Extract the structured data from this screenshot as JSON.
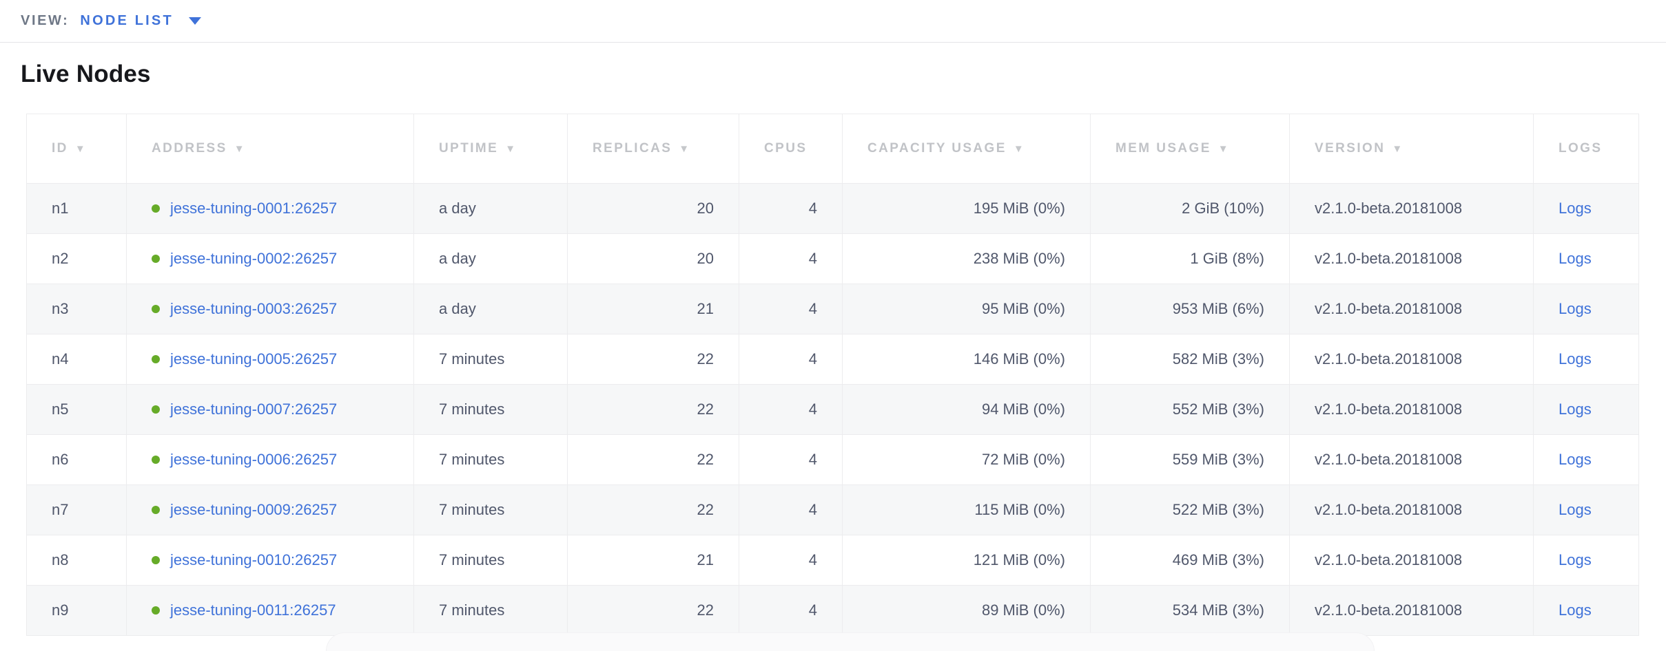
{
  "view_bar": {
    "label": "VIEW:",
    "selected": "NODE LIST"
  },
  "page": {
    "title": "Live Nodes"
  },
  "icons": {
    "sort_desc": "▼"
  },
  "colors": {
    "link_blue": "#3f72d9",
    "status_green": "#66ab28",
    "header_gray": "#c1c3c7",
    "text_slate": "#50576b",
    "stripe_gray": "#f6f7f8"
  },
  "table": {
    "columns": [
      {
        "key": "id",
        "label": "ID",
        "sortable": true,
        "align": "left"
      },
      {
        "key": "address",
        "label": "ADDRESS",
        "sortable": true,
        "align": "left"
      },
      {
        "key": "uptime",
        "label": "UPTIME",
        "sortable": true,
        "align": "left"
      },
      {
        "key": "replicas",
        "label": "REPLICAS",
        "sortable": true,
        "align": "right"
      },
      {
        "key": "cpus",
        "label": "CPUS",
        "sortable": false,
        "align": "right"
      },
      {
        "key": "capacity",
        "label": "CAPACITY USAGE",
        "sortable": true,
        "align": "right"
      },
      {
        "key": "mem",
        "label": "MEM USAGE",
        "sortable": true,
        "align": "right"
      },
      {
        "key": "version",
        "label": "VERSION",
        "sortable": true,
        "align": "left"
      },
      {
        "key": "logs",
        "label": "LOGS",
        "sortable": false,
        "align": "left"
      }
    ],
    "rows": [
      {
        "id": "n1",
        "address": "jesse-tuning-0001:26257",
        "uptime": "a day",
        "replicas": "20",
        "cpus": "4",
        "capacity": "195 MiB (0%)",
        "mem": "2 GiB (10%)",
        "version": "v2.1.0-beta.20181008",
        "logs": "Logs"
      },
      {
        "id": "n2",
        "address": "jesse-tuning-0002:26257",
        "uptime": "a day",
        "replicas": "20",
        "cpus": "4",
        "capacity": "238 MiB (0%)",
        "mem": "1 GiB (8%)",
        "version": "v2.1.0-beta.20181008",
        "logs": "Logs"
      },
      {
        "id": "n3",
        "address": "jesse-tuning-0003:26257",
        "uptime": "a day",
        "replicas": "21",
        "cpus": "4",
        "capacity": "95 MiB (0%)",
        "mem": "953 MiB (6%)",
        "version": "v2.1.0-beta.20181008",
        "logs": "Logs"
      },
      {
        "id": "n4",
        "address": "jesse-tuning-0005:26257",
        "uptime": "7 minutes",
        "replicas": "22",
        "cpus": "4",
        "capacity": "146 MiB (0%)",
        "mem": "582 MiB (3%)",
        "version": "v2.1.0-beta.20181008",
        "logs": "Logs"
      },
      {
        "id": "n5",
        "address": "jesse-tuning-0007:26257",
        "uptime": "7 minutes",
        "replicas": "22",
        "cpus": "4",
        "capacity": "94 MiB (0%)",
        "mem": "552 MiB (3%)",
        "version": "v2.1.0-beta.20181008",
        "logs": "Logs"
      },
      {
        "id": "n6",
        "address": "jesse-tuning-0006:26257",
        "uptime": "7 minutes",
        "replicas": "22",
        "cpus": "4",
        "capacity": "72 MiB (0%)",
        "mem": "559 MiB (3%)",
        "version": "v2.1.0-beta.20181008",
        "logs": "Logs"
      },
      {
        "id": "n7",
        "address": "jesse-tuning-0009:26257",
        "uptime": "7 minutes",
        "replicas": "22",
        "cpus": "4",
        "capacity": "115 MiB (0%)",
        "mem": "522 MiB (3%)",
        "version": "v2.1.0-beta.20181008",
        "logs": "Logs"
      },
      {
        "id": "n8",
        "address": "jesse-tuning-0010:26257",
        "uptime": "7 minutes",
        "replicas": "21",
        "cpus": "4",
        "capacity": "121 MiB (0%)",
        "mem": "469 MiB (3%)",
        "version": "v2.1.0-beta.20181008",
        "logs": "Logs"
      },
      {
        "id": "n9",
        "address": "jesse-tuning-0011:26257",
        "uptime": "7 minutes",
        "replicas": "22",
        "cpus": "4",
        "capacity": "89 MiB (0%)",
        "mem": "534 MiB (3%)",
        "version": "v2.1.0-beta.20181008",
        "logs": "Logs"
      }
    ]
  }
}
